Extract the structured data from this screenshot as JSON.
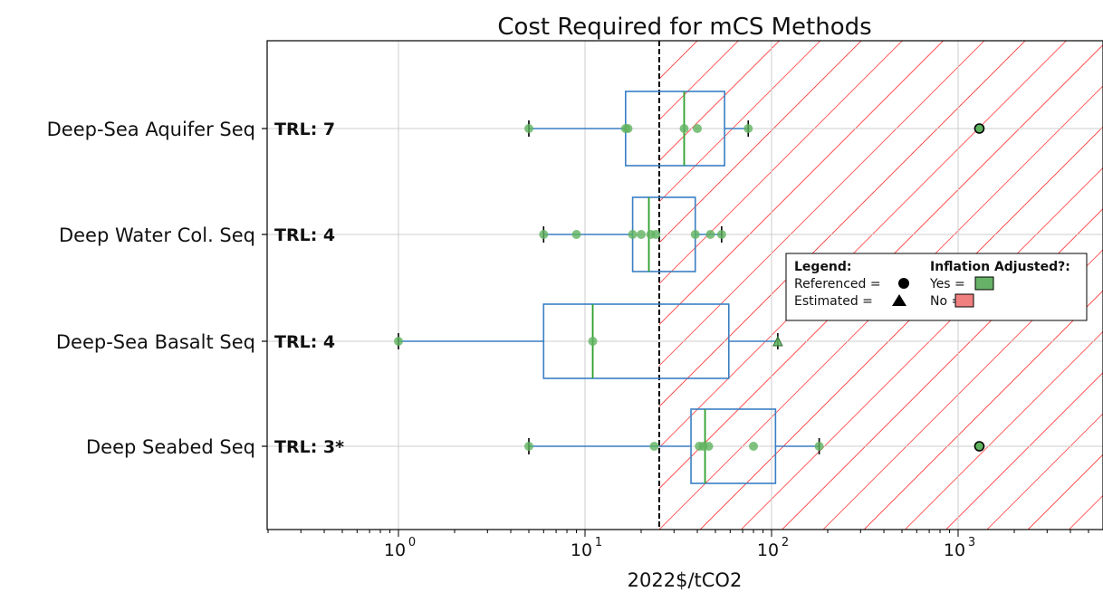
{
  "chart_data": {
    "type": "box",
    "title": "Cost Required for mCS Methods",
    "xlabel": "2022$/tCO2",
    "ylabel": "",
    "xscale": "log",
    "xlim": [
      0.2,
      6000
    ],
    "xticks": [
      {
        "value": 1,
        "base": "10",
        "exp": "0"
      },
      {
        "value": 10,
        "base": "10",
        "exp": "1"
      },
      {
        "value": 100,
        "base": "10",
        "exp": "2"
      },
      {
        "value": 1000,
        "base": "10",
        "exp": "3"
      }
    ],
    "threshold": {
      "value": 25,
      "style": "dashed",
      "region_right": "red hatched"
    },
    "grid": true,
    "categories": [
      {
        "label": "Deep-Sea Aquifer Seq",
        "trl": "TRL: 7",
        "box": {
          "whislo": 5,
          "q1": 16.5,
          "med": 34,
          "q3": 56,
          "whishi": 75
        },
        "points": [
          {
            "x": 5,
            "marker": "circle",
            "color": "green"
          },
          {
            "x": 16.5,
            "marker": "circle",
            "color": "green"
          },
          {
            "x": 17,
            "marker": "circle",
            "color": "green"
          },
          {
            "x": 34,
            "marker": "circle",
            "color": "green"
          },
          {
            "x": 40,
            "marker": "circle",
            "color": "green"
          },
          {
            "x": 75,
            "marker": "circle",
            "color": "green"
          }
        ],
        "outliers": [
          {
            "x": 1300,
            "marker": "circle",
            "color": "green"
          }
        ]
      },
      {
        "label": "Deep Water Col. Seq",
        "trl": "TRL: 4",
        "box": {
          "whislo": 6,
          "q1": 18,
          "med": 22,
          "q3": 39,
          "whishi": 54
        },
        "points": [
          {
            "x": 6,
            "marker": "circle",
            "color": "green"
          },
          {
            "x": 9,
            "marker": "circle",
            "color": "green"
          },
          {
            "x": 18,
            "marker": "circle",
            "color": "green"
          },
          {
            "x": 20,
            "marker": "circle",
            "color": "green"
          },
          {
            "x": 22.5,
            "marker": "circle",
            "color": "green"
          },
          {
            "x": 24,
            "marker": "circle",
            "color": "green"
          },
          {
            "x": 39,
            "marker": "circle",
            "color": "green"
          },
          {
            "x": 47,
            "marker": "circle",
            "color": "green"
          },
          {
            "x": 54,
            "marker": "circle",
            "color": "green"
          }
        ],
        "outliers": []
      },
      {
        "label": "Deep-Sea Basalt Seq",
        "trl": "TRL: 4",
        "box": {
          "whislo": 1,
          "q1": 6,
          "med": 11,
          "q3": 59,
          "whishi": 108
        },
        "points": [
          {
            "x": 1,
            "marker": "circle",
            "color": "green"
          },
          {
            "x": 11,
            "marker": "circle",
            "color": "green"
          },
          {
            "x": 108,
            "marker": "triangle",
            "color": "green"
          }
        ],
        "outliers": []
      },
      {
        "label": "Deep Seabed Seq",
        "trl": "TRL: 3*",
        "box": {
          "whislo": 5,
          "q1": 37,
          "med": 44,
          "q3": 105,
          "whishi": 180
        },
        "points": [
          {
            "x": 5,
            "marker": "circle",
            "color": "green"
          },
          {
            "x": 23.5,
            "marker": "circle",
            "color": "green"
          },
          {
            "x": 41,
            "marker": "circle",
            "color": "green"
          },
          {
            "x": 43,
            "marker": "circle",
            "color": "green"
          },
          {
            "x": 46,
            "marker": "circle",
            "color": "green"
          },
          {
            "x": 80,
            "marker": "circle",
            "color": "green"
          },
          {
            "x": 180,
            "marker": "circle",
            "color": "green"
          }
        ],
        "outliers": [
          {
            "x": 1300,
            "marker": "circle",
            "color": "green"
          }
        ]
      }
    ],
    "legend": {
      "placement": "center-right",
      "heading": "Legend:",
      "heading2": "Inflation Adjusted?:",
      "referenced": "Referenced =",
      "estimated": "Estimated =",
      "yes": "Yes =",
      "no": "No ="
    },
    "colors": {
      "box": "#3a7fc4",
      "median": "#2ca02c",
      "point_fill": "#5fb35f",
      "point_edge": "#2b6e2b",
      "hatch": "#ff0000",
      "legend_yes": "#66b266",
      "legend_no": "#f08080",
      "grid": "#cccccc"
    }
  }
}
